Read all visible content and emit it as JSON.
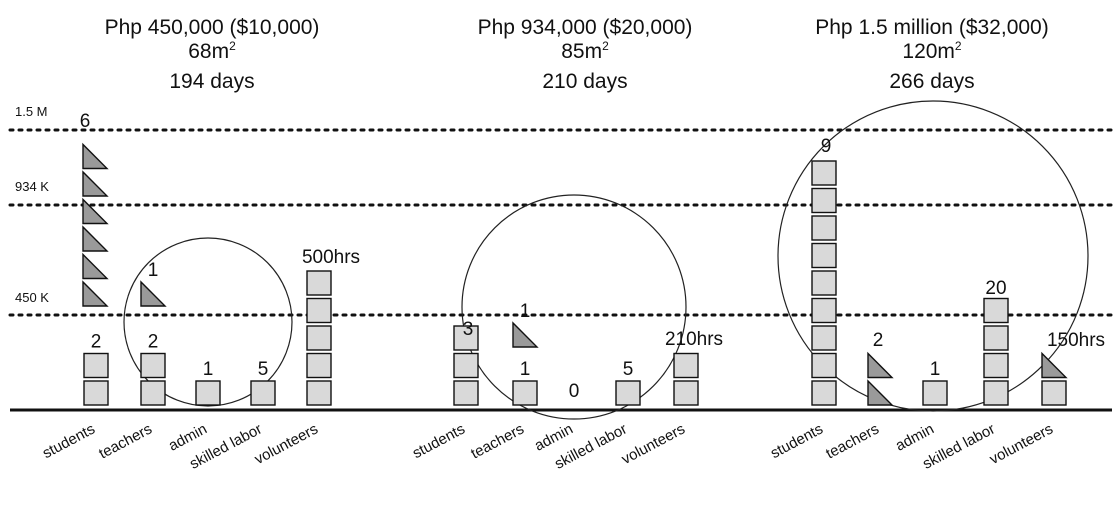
{
  "levels": [
    {
      "label": "1.5 M",
      "value": 1500000
    },
    {
      "label": "934 K",
      "value": 934000
    },
    {
      "label": "450 K",
      "value": 450000
    }
  ],
  "projects": [
    {
      "cost": "Php 450,000 ($10,000)",
      "area": "68m",
      "area_sup": "2",
      "duration": "194 days",
      "budget_value": 450000,
      "groups": [
        {
          "label": "students",
          "count": "2",
          "marks": [
            {
              "shape": "square",
              "n": 2
            }
          ]
        },
        {
          "label": "teachers",
          "count": "2",
          "marks": [
            {
              "shape": "square",
              "n": 2
            }
          ],
          "extra_count": "1",
          "extra_marks": {
            "shape": "triangle",
            "n": 1
          }
        },
        {
          "label": "admin",
          "count": "1",
          "marks": [
            {
              "shape": "square",
              "n": 1
            }
          ]
        },
        {
          "label": "skilled labor",
          "count": "5",
          "marks": [
            {
              "shape": "square",
              "n": 1
            }
          ]
        },
        {
          "label": "volunteers",
          "count": "500hrs",
          "marks": [
            {
              "shape": "square",
              "n": 5
            }
          ]
        }
      ],
      "side_marker": {
        "count": "6",
        "shape": "triangle",
        "n": 6
      }
    },
    {
      "cost": "Php 934,000 ($20,000)",
      "area": "85m",
      "area_sup": "2",
      "duration": "210 days",
      "budget_value": 934000,
      "groups": [
        {
          "label": "students",
          "count": "3",
          "marks": [
            {
              "shape": "square",
              "n": 3
            }
          ]
        },
        {
          "label": "teachers",
          "count": "1",
          "marks": [
            {
              "shape": "square",
              "n": 1
            }
          ],
          "extra_count": "1",
          "extra_marks": {
            "shape": "triangle",
            "n": 1
          }
        },
        {
          "label": "admin",
          "count": "0",
          "marks": []
        },
        {
          "label": "skilled labor",
          "count": "5",
          "marks": [
            {
              "shape": "square",
              "n": 1
            }
          ]
        },
        {
          "label": "volunteers",
          "count": "210hrs",
          "marks": [
            {
              "shape": "square",
              "n": 2
            }
          ]
        }
      ]
    },
    {
      "cost": "Php 1.5 million ($32,000)",
      "area": "120m",
      "area_sup": "2",
      "duration": "266 days",
      "budget_value": 1500000,
      "groups": [
        {
          "label": "students",
          "count": "9",
          "marks": [
            {
              "shape": "square",
              "n": 9
            }
          ]
        },
        {
          "label": "teachers",
          "count": "2",
          "marks": [
            {
              "shape": "triangle",
              "n": 2
            }
          ]
        },
        {
          "label": "admin",
          "count": "1",
          "marks": [
            {
              "shape": "square",
              "n": 1
            }
          ]
        },
        {
          "label": "skilled labor",
          "count": "20",
          "marks": [
            {
              "shape": "square",
              "n": 4
            }
          ]
        },
        {
          "label": "volunteers",
          "count": "150hrs",
          "marks": [
            {
              "shape": "square",
              "n": 1
            },
            {
              "shape": "triangle",
              "n": 1
            }
          ]
        }
      ]
    }
  ],
  "colors": {
    "square_fill": "#d9d9d9",
    "triangle_fill": "#9a9a9a",
    "ink": "#111111"
  }
}
